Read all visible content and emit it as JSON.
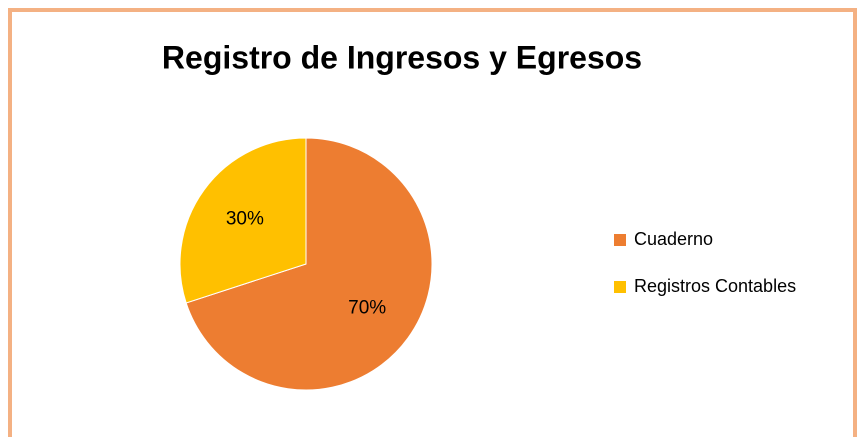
{
  "chart_data": {
    "type": "pie",
    "title": "Registro de Ingresos y Egresos",
    "categories": [
      "Cuaderno",
      "Registros Contables"
    ],
    "values": [
      70,
      30
    ],
    "value_labels": [
      "70%",
      "30%"
    ],
    "colors": [
      "#ed7d31",
      "#ffc000"
    ],
    "legend": "right"
  }
}
